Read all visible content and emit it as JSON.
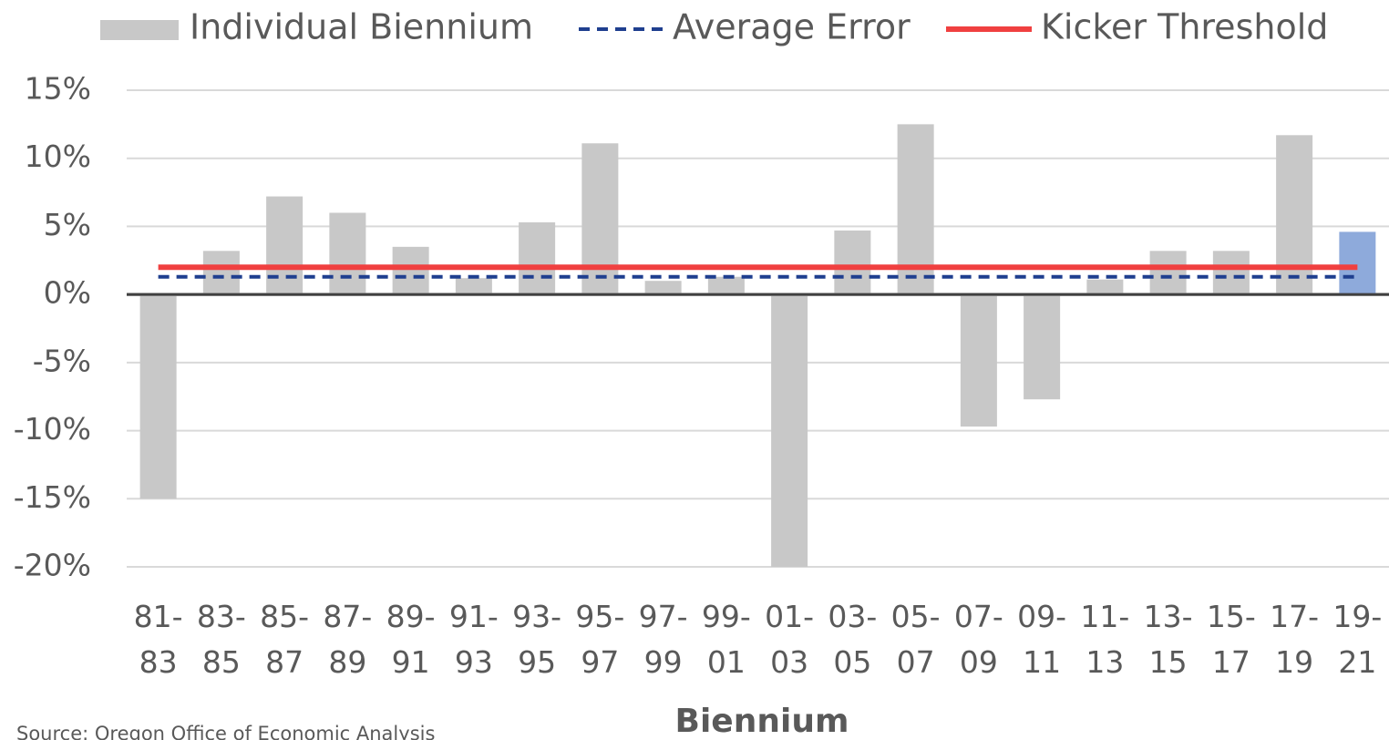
{
  "chart_data": {
    "type": "bar",
    "x_label": "Biennium",
    "source": "Source: Oregon Office of Economic Analysis",
    "categories": [
      "81-\n83",
      "83-\n85",
      "85-\n87",
      "87-\n89",
      "89-\n91",
      "91-\n93",
      "93-\n95",
      "95-\n97",
      "97-\n99",
      "99-\n01",
      "01-\n03",
      "03-\n05",
      "05-\n07",
      "07-\n09",
      "09-\n11",
      "11-\n13",
      "13-\n15",
      "15-\n17",
      "17-\n19",
      "19-\n21"
    ],
    "series": [
      {
        "name": "Individual Biennium",
        "type": "bar",
        "color": "#c8c8c8",
        "colors": [
          "#c8c8c8",
          "#c8c8c8",
          "#c8c8c8",
          "#c8c8c8",
          "#c8c8c8",
          "#c8c8c8",
          "#c8c8c8",
          "#c8c8c8",
          "#c8c8c8",
          "#c8c8c8",
          "#c8c8c8",
          "#c8c8c8",
          "#c8c8c8",
          "#c8c8c8",
          "#c8c8c8",
          "#c8c8c8",
          "#c8c8c8",
          "#c8c8c8",
          "#c8c8c8",
          "#8eaadb"
        ],
        "values": [
          -15.0,
          3.2,
          7.2,
          6.0,
          3.5,
          1.2,
          5.3,
          11.1,
          1.0,
          1.3,
          -20.0,
          4.7,
          12.5,
          -9.7,
          -7.7,
          1.1,
          3.2,
          3.2,
          11.7,
          4.6
        ]
      },
      {
        "name": "Average Error",
        "type": "line",
        "style": "dashed",
        "color": "#1f3f8f",
        "values": [
          1.3,
          1.3,
          1.3,
          1.3,
          1.3,
          1.3,
          1.3,
          1.3,
          1.3,
          1.3,
          1.3,
          1.3,
          1.3,
          1.3,
          1.3,
          1.3,
          1.3,
          1.3,
          1.3,
          1.3
        ]
      },
      {
        "name": "Kicker Threshold",
        "type": "line",
        "style": "solid",
        "color": "#f04040",
        "values": [
          2,
          2,
          2,
          2,
          2,
          2,
          2,
          2,
          2,
          2,
          2,
          2,
          2,
          2,
          2,
          2,
          2,
          2,
          2,
          2
        ]
      }
    ],
    "ylim": [
      -20,
      15
    ],
    "yticks": [
      {
        "value": -20,
        "label": "-20%"
      },
      {
        "value": -15,
        "label": "-15%"
      },
      {
        "value": -10,
        "label": "-10%"
      },
      {
        "value": -5,
        "label": "-5%"
      },
      {
        "value": 0,
        "label": "0%"
      },
      {
        "value": 5,
        "label": "5%"
      },
      {
        "value": 10,
        "label": "10%"
      },
      {
        "value": 15,
        "label": "15%"
      }
    ],
    "grid": true,
    "legend": "top"
  }
}
